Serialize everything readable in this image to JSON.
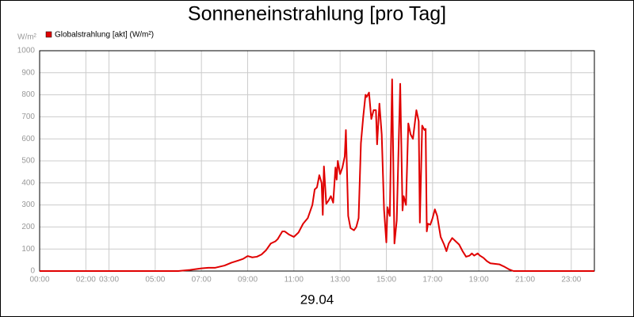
{
  "chart_data": {
    "type": "line",
    "title": "Sonneneinstrahlung [pro Tag]",
    "y_unit": "W/m²",
    "x_label": "29.04",
    "xlim": [
      0,
      24
    ],
    "ylim": [
      0,
      1000
    ],
    "xticks": [
      {
        "value": 0,
        "label": "00:00"
      },
      {
        "value": 2,
        "label": "02:00"
      },
      {
        "value": 3,
        "label": "03:00"
      },
      {
        "value": 5,
        "label": "05:00"
      },
      {
        "value": 7,
        "label": "07:00"
      },
      {
        "value": 9,
        "label": "09:00"
      },
      {
        "value": 11,
        "label": "11:00"
      },
      {
        "value": 13,
        "label": "13:00"
      },
      {
        "value": 15,
        "label": "15:00"
      },
      {
        "value": 17,
        "label": "17:00"
      },
      {
        "value": 19,
        "label": "19:00"
      },
      {
        "value": 21,
        "label": "21:00"
      },
      {
        "value": 23,
        "label": "23:00"
      }
    ],
    "yticks": [
      0,
      100,
      200,
      300,
      400,
      500,
      600,
      700,
      800,
      900,
      1000
    ],
    "grid": true,
    "series": [
      {
        "name": "Globalstrahlung [akt] (W/m²)",
        "color": "#e00000",
        "x": [
          0,
          6,
          6.5,
          7,
          7.3,
          7.6,
          8,
          8.3,
          8.6,
          8.8,
          9,
          9.2,
          9.4,
          9.6,
          9.8,
          10,
          10.2,
          10.3,
          10.5,
          10.6,
          10.8,
          11,
          11.2,
          11.4,
          11.6,
          11.8,
          11.9,
          12,
          12.1,
          12.2,
          12.25,
          12.3,
          12.4,
          12.5,
          12.6,
          12.7,
          12.8,
          12.85,
          12.9,
          13,
          13.1,
          13.2,
          13.25,
          13.35,
          13.45,
          13.6,
          13.7,
          13.8,
          13.9,
          14,
          14.1,
          14.15,
          14.25,
          14.35,
          14.45,
          14.55,
          14.6,
          14.7,
          14.8,
          14.9,
          15,
          15.05,
          15.15,
          15.25,
          15.35,
          15.45,
          15.6,
          15.7,
          15.75,
          15.85,
          15.95,
          16.05,
          16.15,
          16.3,
          16.4,
          16.45,
          16.55,
          16.65,
          16.7,
          16.75,
          16.8,
          16.9,
          17,
          17.1,
          17.2,
          17.35,
          17.5,
          17.6,
          17.7,
          17.85,
          18,
          18.15,
          18.3,
          18.45,
          18.6,
          18.7,
          18.8,
          18.95,
          19.05,
          19.2,
          19.35,
          19.5,
          19.9,
          20.1,
          20.3,
          20.5,
          24
        ],
        "values": [
          0,
          0,
          5,
          12,
          15,
          15,
          25,
          38,
          48,
          55,
          68,
          62,
          65,
          75,
          95,
          125,
          135,
          145,
          180,
          180,
          165,
          155,
          175,
          215,
          240,
          300,
          370,
          380,
          435,
          400,
          255,
          475,
          305,
          320,
          340,
          310,
          470,
          415,
          500,
          440,
          470,
          520,
          640,
          250,
          195,
          185,
          200,
          240,
          580,
          700,
          800,
          790,
          810,
          690,
          730,
          730,
          575,
          760,
          620,
          280,
          130,
          290,
          250,
          870,
          125,
          230,
          850,
          275,
          340,
          300,
          670,
          620,
          600,
          730,
          680,
          220,
          660,
          640,
          645,
          180,
          215,
          210,
          240,
          280,
          250,
          155,
          120,
          90,
          125,
          150,
          135,
          120,
          90,
          65,
          70,
          80,
          70,
          80,
          70,
          60,
          45,
          35,
          30,
          20,
          8,
          0,
          0
        ]
      }
    ]
  }
}
